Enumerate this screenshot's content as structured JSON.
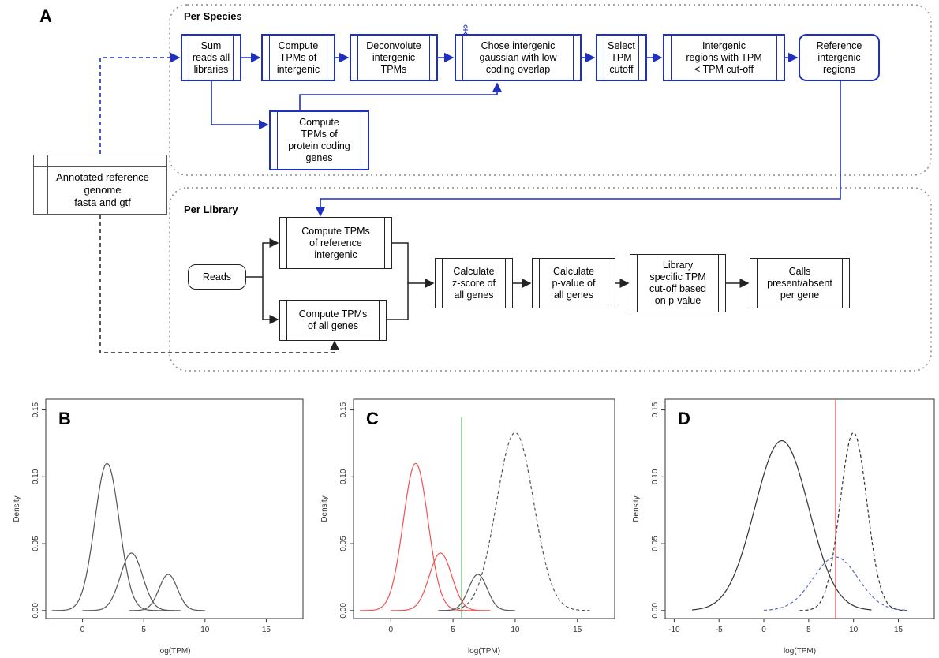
{
  "panel_a": {
    "letter": "A",
    "per_species_title": "Per Species",
    "per_library_title": "Per Library",
    "reference_genome": {
      "line1": "Annotated reference",
      "line2": "genome",
      "line3": "fasta and gtf"
    },
    "species_steps": {
      "sum_reads": [
        "Sum",
        "reads all",
        "libraries"
      ],
      "compute_tpm_intergenic": [
        "Compute",
        "TPMs of",
        "intergenic"
      ],
      "deconvolute": [
        "Deconvolute",
        "intergenic",
        "TPMs"
      ],
      "chose_gaussian": [
        "Chose intergenic",
        "gaussian with low",
        "coding overlap"
      ],
      "select_cutoff": [
        "Select",
        "TPM",
        "cutoff"
      ],
      "intergenic_regions": [
        "Intergenic",
        "regions with TPM",
        "< TPM cut-off"
      ],
      "reference_intergenic": [
        "Reference",
        "intergenic",
        "regions"
      ],
      "compute_tpm_coding": [
        "Compute",
        "TPMs of",
        "protein coding",
        "genes"
      ]
    },
    "library_steps": {
      "reads": [
        "Reads"
      ],
      "compute_tpm_reference": [
        "Compute TPMs",
        "of reference",
        "intergenic"
      ],
      "compute_tpm_all": [
        "Compute TPMs",
        "of all genes"
      ],
      "zscore": [
        "Calculate",
        "z-score of",
        "all genes"
      ],
      "pvalue": [
        "Calculate",
        "p-value of",
        "all genes"
      ],
      "library_cutoff": [
        "Library",
        "specific TPM",
        "cut-off based",
        "on p-value"
      ],
      "calls": [
        "Calls",
        "present/absent",
        "per gene"
      ]
    },
    "colors": {
      "blue": "#1f2fbf",
      "black": "#222222",
      "section_border": "#8a8a8a"
    }
  },
  "plots": [
    {
      "letter": "B",
      "chart_data": {
        "type": "line",
        "xlabel": "log(TPM)",
        "ylabel": "Density",
        "xlim": [
          -3,
          18
        ],
        "ylim": [
          -0.006,
          0.158
        ],
        "xticks": [
          0,
          5,
          10,
          15
        ],
        "yticks": [
          0.0,
          0.05,
          0.1,
          0.15
        ],
        "series": [
          {
            "kind": "gaussian",
            "mu": 2,
            "sigma": 1.0,
            "peak": 0.11,
            "from": -2.5,
            "to": 7,
            "color": "#555555",
            "dash": false
          },
          {
            "kind": "gaussian",
            "mu": 4,
            "sigma": 0.9,
            "peak": 0.043,
            "from": 0,
            "to": 8,
            "color": "#555555",
            "dash": false
          },
          {
            "kind": "gaussian",
            "mu": 7,
            "sigma": 0.75,
            "peak": 0.027,
            "from": 3.8,
            "to": 10,
            "color": "#555555",
            "dash": false
          }
        ],
        "vlines": []
      }
    },
    {
      "letter": "C",
      "chart_data": {
        "type": "line",
        "xlabel": "log(TPM)",
        "ylabel": "Density",
        "xlim": [
          -3,
          18
        ],
        "ylim": [
          -0.006,
          0.158
        ],
        "xticks": [
          0,
          5,
          10,
          15
        ],
        "yticks": [
          0.0,
          0.05,
          0.1,
          0.15
        ],
        "series": [
          {
            "kind": "gaussian",
            "mu": 2,
            "sigma": 1.0,
            "peak": 0.11,
            "from": -2.5,
            "to": 7,
            "color": "#ef5350",
            "dash": false
          },
          {
            "kind": "gaussian",
            "mu": 4,
            "sigma": 0.9,
            "peak": 0.043,
            "from": 0,
            "to": 8,
            "color": "#ef5350",
            "dash": false
          },
          {
            "kind": "gaussian",
            "mu": 7,
            "sigma": 0.75,
            "peak": 0.027,
            "from": 3.8,
            "to": 10,
            "color": "#555555",
            "dash": false
          },
          {
            "kind": "gaussian",
            "mu": 10,
            "sigma": 1.5,
            "peak": 0.133,
            "from": 4,
            "to": 16,
            "color": "#555555",
            "dash": true
          }
        ],
        "vlines": [
          {
            "x": 5.7,
            "ymax": 0.145,
            "color": "#43a047"
          }
        ]
      }
    },
    {
      "letter": "D",
      "chart_data": {
        "type": "line",
        "xlabel": "log(TPM)",
        "ylabel": "Density",
        "xlim": [
          -11,
          19
        ],
        "ylim": [
          -0.006,
          0.158
        ],
        "xticks": [
          -10,
          -5,
          0,
          5,
          10,
          15
        ],
        "yticks": [
          0.0,
          0.05,
          0.1,
          0.15
        ],
        "series": [
          {
            "kind": "gaussian",
            "mu": 2,
            "sigma": 3.0,
            "peak": 0.127,
            "from": -8,
            "to": 12,
            "color": "#333333",
            "dash": false
          },
          {
            "kind": "gaussian",
            "mu": 10,
            "sigma": 1.5,
            "peak": 0.133,
            "from": 4,
            "to": 16,
            "color": "#333333",
            "dash": true
          },
          {
            "kind": "gaussian",
            "mu": 8,
            "sigma": 2.5,
            "peak": 0.04,
            "from": 0,
            "to": 16,
            "color": "#5c6bc0",
            "dash": true
          }
        ],
        "vlines": [
          {
            "x": 8,
            "ymax": 0.2,
            "color": "#ef5350"
          }
        ]
      }
    }
  ]
}
